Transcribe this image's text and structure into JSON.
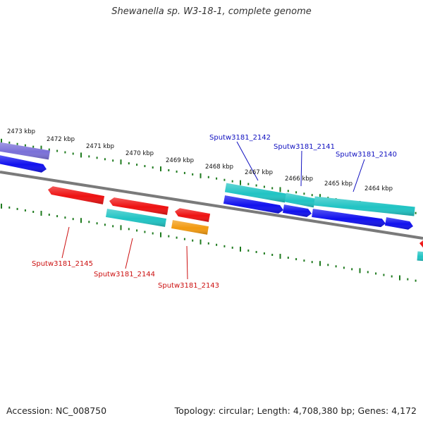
{
  "title": "Shewanella sp. W3-18-1, complete genome",
  "footer": {
    "accession": "Accession: NC_008750",
    "topology": "Topology: circular; Length: 4,708,380 bp; Genes: 4,172"
  },
  "colors": {
    "backbone": "#7a7a7a",
    "ticks": "#1e7a1e",
    "forward_label": "#1010c0",
    "reverse_label": "#cc1010",
    "red": "#ee1111",
    "blue": "#1111ee",
    "cyan": "#20c4c4",
    "orange": "#f29a10",
    "purple": "#7a70d8"
  },
  "tick_labels": [
    "2473 kbp",
    "2472 kbp",
    "2471 kbp",
    "2470 kbp",
    "2469 kbp",
    "2468 kbp",
    "2467 kbp",
    "2466 kbp",
    "2465 kbp",
    "2464 kbp"
  ],
  "gene_labels": {
    "forward": [
      "Sputw3181_2142",
      "Sputw3181_2141",
      "Sputw3181_2140"
    ],
    "reverse": [
      "Sputw3181_2145",
      "Sputw3181_2144",
      "Sputw3181_2143"
    ]
  },
  "features": [
    {
      "id": "purple-cds",
      "color": "purple"
    },
    {
      "id": "blue-left-cds",
      "color": "blue"
    },
    {
      "id": "red-2145-cds",
      "color": "red"
    },
    {
      "id": "red-2144-cds",
      "color": "red"
    },
    {
      "id": "cyan-2144-gene",
      "color": "cyan"
    },
    {
      "id": "red-2143-cds",
      "color": "red"
    },
    {
      "id": "orange-2143-gene",
      "color": "orange"
    },
    {
      "id": "cyan-2142-gene",
      "color": "cyan"
    },
    {
      "id": "cyan-2141-gene",
      "color": "cyan"
    },
    {
      "id": "cyan-2140-gene",
      "color": "cyan"
    },
    {
      "id": "blue-2142-cds",
      "color": "blue"
    },
    {
      "id": "blue-2141-cds",
      "color": "blue"
    },
    {
      "id": "blue-2140-cds",
      "color": "blue"
    },
    {
      "id": "blue-right-cds",
      "color": "blue"
    },
    {
      "id": "red-right-cds",
      "color": "red"
    },
    {
      "id": "cyan-right-gene",
      "color": "cyan"
    }
  ]
}
